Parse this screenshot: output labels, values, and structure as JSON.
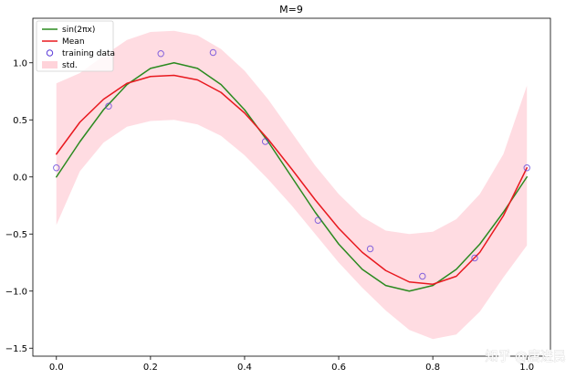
{
  "chart_data": {
    "type": "line",
    "title": "M=9",
    "xlabel": "",
    "ylabel": "",
    "xlim": [
      -0.05,
      1.05
    ],
    "ylim": [
      -1.57,
      1.39
    ],
    "xticks": [
      0.0,
      0.2,
      0.4,
      0.6,
      0.8,
      1.0
    ],
    "xtick_labels": [
      "0.0",
      "0.2",
      "0.4",
      "0.6",
      "0.8",
      "1.0"
    ],
    "yticks": [
      -1.5,
      -1.0,
      -0.5,
      0.0,
      0.5,
      1.0
    ],
    "ytick_labels": [
      "−1.5",
      "−1.0",
      "−0.5",
      "0.0",
      "0.5",
      "1.0"
    ],
    "grid": false,
    "legend_position": "top-left",
    "series": [
      {
        "name": "sin(2πx)",
        "kind": "line",
        "color": "#2a8a1f",
        "x": [
          0.0,
          0.05,
          0.1,
          0.15,
          0.2,
          0.25,
          0.3,
          0.35,
          0.4,
          0.45,
          0.5,
          0.55,
          0.6,
          0.65,
          0.7,
          0.75,
          0.8,
          0.85,
          0.9,
          0.95,
          1.0
        ],
        "values": [
          0.0,
          0.309,
          0.588,
          0.809,
          0.951,
          1.0,
          0.951,
          0.809,
          0.588,
          0.309,
          0.0,
          -0.309,
          -0.588,
          -0.809,
          -0.951,
          -1.0,
          -0.951,
          -0.809,
          -0.588,
          -0.309,
          0.0
        ]
      },
      {
        "name": "Mean",
        "kind": "line",
        "color": "#e8191f",
        "x": [
          0.0,
          0.05,
          0.1,
          0.15,
          0.2,
          0.25,
          0.3,
          0.35,
          0.4,
          0.45,
          0.5,
          0.55,
          0.6,
          0.65,
          0.7,
          0.75,
          0.8,
          0.85,
          0.9,
          0.95,
          1.0
        ],
        "values": [
          0.2,
          0.48,
          0.68,
          0.82,
          0.88,
          0.89,
          0.85,
          0.74,
          0.56,
          0.33,
          0.07,
          -0.2,
          -0.45,
          -0.66,
          -0.82,
          -0.92,
          -0.94,
          -0.87,
          -0.66,
          -0.34,
          0.08
        ]
      },
      {
        "name": "training data",
        "kind": "scatter",
        "color": "#5b3bd9",
        "x": [
          0.0,
          0.111,
          0.222,
          0.333,
          0.444,
          0.556,
          0.667,
          0.778,
          0.889,
          1.0
        ],
        "values": [
          0.08,
          0.62,
          1.08,
          1.09,
          0.31,
          -0.38,
          -0.63,
          -0.87,
          -0.71,
          0.08
        ]
      },
      {
        "name": "std.",
        "kind": "band",
        "color": "#ffc0cb",
        "x": [
          0.0,
          0.05,
          0.1,
          0.15,
          0.2,
          0.25,
          0.3,
          0.35,
          0.4,
          0.45,
          0.5,
          0.55,
          0.6,
          0.65,
          0.7,
          0.75,
          0.8,
          0.85,
          0.9,
          0.95,
          1.0
        ],
        "upper": [
          0.82,
          0.91,
          1.06,
          1.2,
          1.27,
          1.28,
          1.24,
          1.12,
          0.93,
          0.68,
          0.39,
          0.1,
          -0.15,
          -0.35,
          -0.47,
          -0.5,
          -0.48,
          -0.37,
          -0.15,
          0.2,
          0.8
        ],
        "lower": [
          -0.42,
          0.05,
          0.3,
          0.44,
          0.49,
          0.5,
          0.46,
          0.36,
          0.19,
          -0.02,
          -0.25,
          -0.5,
          -0.75,
          -0.97,
          -1.17,
          -1.34,
          -1.42,
          -1.38,
          -1.18,
          -0.88,
          -0.6
        ]
      }
    ]
  },
  "legend": {
    "items": [
      {
        "label": "sin(2πx)",
        "kind": "line",
        "color": "#2a8a1f"
      },
      {
        "label": "Mean",
        "kind": "line",
        "color": "#e8191f"
      },
      {
        "label": "training data",
        "kind": "marker",
        "color": "#5b3bd9"
      },
      {
        "label": "std.",
        "kind": "patch",
        "color": "#ffc0cb"
      }
    ]
  },
  "watermark": {
    "text": "知乎 @唐进民"
  }
}
